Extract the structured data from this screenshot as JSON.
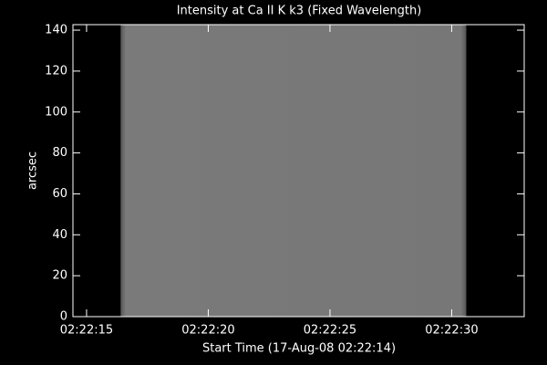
{
  "chart_data": {
    "type": "image",
    "title": "Intensity at Ca II K k3 (Fixed Wavelength)",
    "xlabel": "Start Time (17-Aug-08 02:22:14)",
    "ylabel": "arcsec",
    "xlim": [
      14.44,
      32.98
    ],
    "ylim": [
      0,
      142.7
    ],
    "xticks": [
      {
        "value": 15,
        "label": "02:22:15"
      },
      {
        "value": 20,
        "label": "02:22:20"
      },
      {
        "value": 25,
        "label": "02:22:25"
      },
      {
        "value": 30,
        "label": "02:22:30"
      }
    ],
    "yticks": [
      0,
      20,
      40,
      60,
      80,
      100,
      120,
      140
    ],
    "data_xlim": [
      16.4,
      30.6
    ],
    "color": "#777777"
  }
}
